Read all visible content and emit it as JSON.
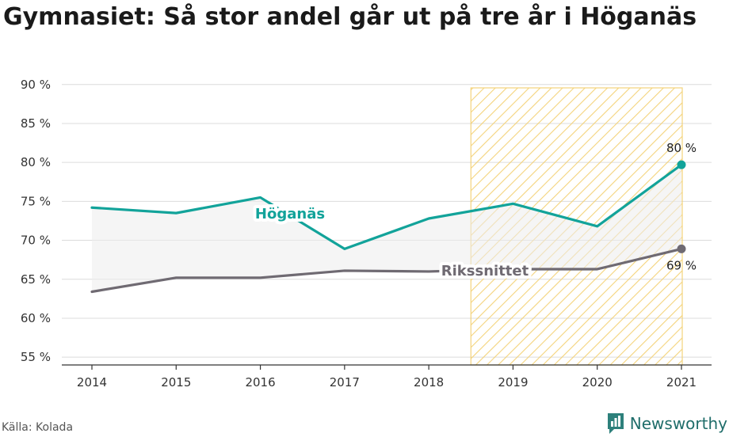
{
  "title": "Gymnasiet: Så stor andel går ut på tre år i Höganäs",
  "source": "Källa: Kolada",
  "brand": {
    "name": "Newsworthy",
    "icon": "newsworthy-logo-icon"
  },
  "chart_data": {
    "type": "line",
    "title": "Gymnasiet: Så stor andel går ut på tre år i Höganäs",
    "x": [
      "2014",
      "2015",
      "2016",
      "2017",
      "2018",
      "2019",
      "2020",
      "2021"
    ],
    "ylim": [
      54,
      91.5
    ],
    "yticks": [
      55,
      60,
      65,
      70,
      75,
      80,
      85,
      90
    ],
    "ytick_labels": [
      "55 %",
      "60 %",
      "65 %",
      "70 %",
      "75 %",
      "80 %",
      "85 %",
      "90 %"
    ],
    "grid": true,
    "fill_between_series": true,
    "highlight_range": [
      "2019",
      "2021"
    ],
    "series": [
      {
        "name": "Höganäs",
        "color": "#12a39a",
        "values": [
          74.2,
          73.5,
          75.5,
          68.9,
          72.8,
          74.7,
          71.8,
          79.7
        ],
        "end_label": "80 %"
      },
      {
        "name": "Rikssnittet",
        "color": "#6f6a72",
        "values": [
          63.4,
          65.2,
          65.2,
          66.1,
          66.0,
          66.3,
          66.3,
          68.9
        ],
        "end_label": "69 %"
      }
    ]
  }
}
